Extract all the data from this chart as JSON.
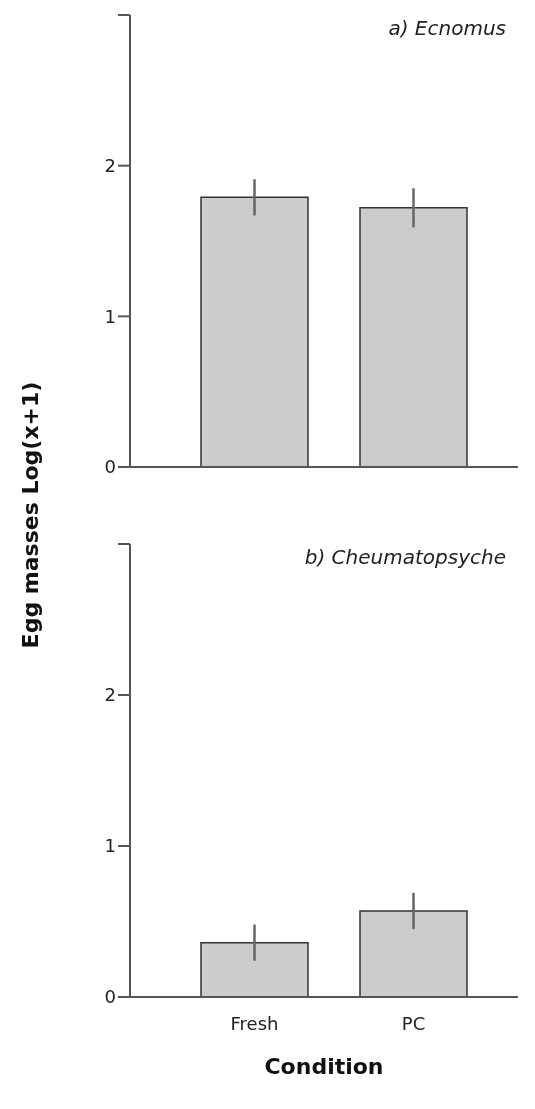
{
  "chart_data": [
    {
      "type": "bar",
      "title": "a) Ecnomus",
      "ylabel": "Egg masses Log(x+1)",
      "categories": [
        null,
        null
      ],
      "values": [
        1.79,
        1.72
      ],
      "errors": [
        0.12,
        0.13
      ],
      "color": "#cccccc",
      "ylim": [
        0,
        3
      ],
      "yticks": [
        0,
        1,
        2,
        {
          "value": 3,
          "label": null
        }
      ],
      "tick_labels": "y"
    },
    {
      "type": "bar",
      "title": "b) Cheumatopsyche",
      "xlabel": "Condition",
      "categories": [
        "Fresh",
        "PC"
      ],
      "values": [
        0.36,
        0.57
      ],
      "errors": [
        0.12,
        0.12
      ],
      "color": "#cccccc",
      "ylim": [
        0,
        3
      ],
      "yticks": [
        0,
        1,
        2,
        {
          "value": 3,
          "label": null
        }
      ]
    }
  ]
}
